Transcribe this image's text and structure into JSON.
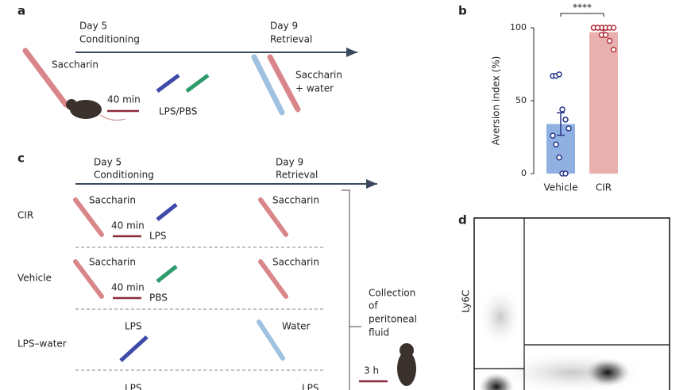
{
  "panel_labels": [
    "a",
    "b",
    "c",
    "d"
  ],
  "panel_a": {
    "day5": "Day 5",
    "conditioning": "Conditioning",
    "day9": "Day 9",
    "retrieval": "Retrieval",
    "saccharin": "Saccharin",
    "interval": "40 min",
    "injection": "LPS/PBS",
    "retrieval_drink": [
      "Saccharin",
      "+ water"
    ]
  },
  "chart_data": {
    "type": "bar",
    "y_label": "Aversion index (%)",
    "annotation": "****",
    "categories": [
      "Vehicle",
      "CIR"
    ],
    "values": [
      34,
      97
    ],
    "errors": [
      7.7,
      1.4
    ],
    "colors": [
      "#8fb0e0",
      "#e8b0ae"
    ],
    "point_colors": [
      "#27368a",
      "#b0303a"
    ],
    "points": [
      [
        67,
        67,
        68,
        44,
        37,
        31,
        26,
        20,
        11,
        0,
        0
      ],
      [
        100,
        100,
        100,
        100,
        100,
        100,
        100,
        100,
        95,
        95,
        91,
        85
      ]
    ],
    "ylim": [
      0,
      100
    ],
    "yticks": [
      0,
      50,
      100
    ]
  },
  "panel_c": {
    "day5": "Day 5",
    "conditioning": "Conditioning",
    "day9": "Day 9",
    "retrieval": "Retrieval",
    "rows": [
      {
        "label": "CIR",
        "conditioning_drink": "Saccharin",
        "interval": "40 min",
        "injection": "LPS",
        "retrieval_drink": "Saccharin"
      },
      {
        "label": "Vehicle",
        "conditioning_drink": "Saccharin",
        "interval": "40 min",
        "injection": "PBS",
        "retrieval_drink": "Saccharin"
      },
      {
        "label": "LPS–water",
        "injection": "LPS",
        "retrieval_drink": "Water"
      }
    ],
    "cut_off": [
      "LPS",
      "LPS"
    ],
    "collection": [
      "Collection",
      "of",
      "peritoneal",
      "fluid"
    ],
    "delay": "3 h"
  },
  "panel_d": {
    "y_label": "Ly6C"
  }
}
